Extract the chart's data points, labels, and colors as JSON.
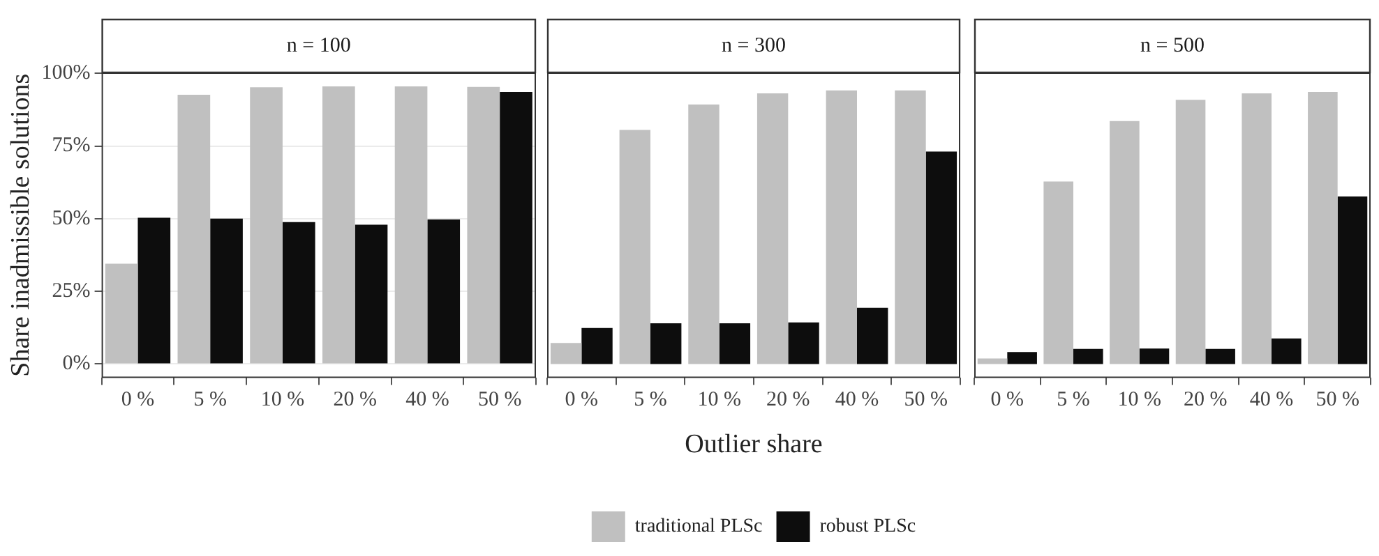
{
  "chart_data": [
    {
      "type": "bar",
      "title": "n = 100",
      "ylabel": "Share inadmissible solutions",
      "categories": [
        "0 %",
        "5 %",
        "10 %",
        "20 %",
        "40 %",
        "50 %"
      ],
      "series": [
        {
          "color": "#c0c0c0",
          "values": [
            34.5,
            92.6,
            95.2,
            95.5,
            95.5,
            95.3
          ]
        },
        {
          "color": "#0d0d0d",
          "values": [
            50.3,
            50,
            48.8,
            47.9,
            49.7,
            93.6
          ]
        }
      ],
      "ylim": [
        -4.8,
        100.3
      ],
      "yticks": [
        {
          "value": 0,
          "label": "0%"
        },
        {
          "value": 25,
          "label": "25%"
        },
        {
          "value": 50,
          "label": "50%"
        },
        {
          "value": 75,
          "label": "75%"
        },
        {
          "value": 100,
          "label": "100%"
        }
      ],
      "grid": "y"
    },
    {
      "type": "bar",
      "title": "n = 300",
      "xlabel": "Outlier share",
      "categories": [
        "0 %",
        "5 %",
        "10 %",
        "20 %",
        "40 %",
        "50 %"
      ],
      "series": [
        {
          "name": "traditional PLSc",
          "color": "#c0c0c0",
          "values": [
            7.2,
            80.5,
            89.3,
            93.1,
            94.1,
            94.1
          ]
        },
        {
          "name": "robust PLSc",
          "color": "#0d0d0d",
          "values": [
            12.4,
            14,
            14,
            14.3,
            19.3,
            73.1
          ]
        }
      ],
      "ylim": [
        -4.8,
        100.3
      ],
      "yticks": [
        {
          "value": 0,
          "label": null
        },
        {
          "value": 25,
          "label": null
        },
        {
          "value": 50,
          "label": null
        },
        {
          "value": 75,
          "label": null
        },
        {
          "value": 100,
          "label": null
        }
      ],
      "grid": "y",
      "tick_labels": "x",
      "legend": "bottom"
    },
    {
      "type": "bar",
      "title": "n = 500",
      "categories": [
        "0 %",
        "5 %",
        "10 %",
        "20 %",
        "40 %",
        "50 %"
      ],
      "series": [
        {
          "color": "#c0c0c0",
          "values": [
            1.9,
            62.8,
            83.6,
            90.9,
            93.1,
            93.6
          ]
        },
        {
          "color": "#0d0d0d",
          "values": [
            4.1,
            5.2,
            5.3,
            5.2,
            8.8,
            57.6
          ]
        }
      ],
      "ylim": [
        -4.8,
        100.3
      ],
      "yticks": [
        {
          "value": 0,
          "label": null
        },
        {
          "value": 25,
          "label": null
        },
        {
          "value": 50,
          "label": null
        },
        {
          "value": 75,
          "label": null
        },
        {
          "value": 100,
          "label": null
        }
      ],
      "grid": "y",
      "tick_labels": "x"
    }
  ]
}
